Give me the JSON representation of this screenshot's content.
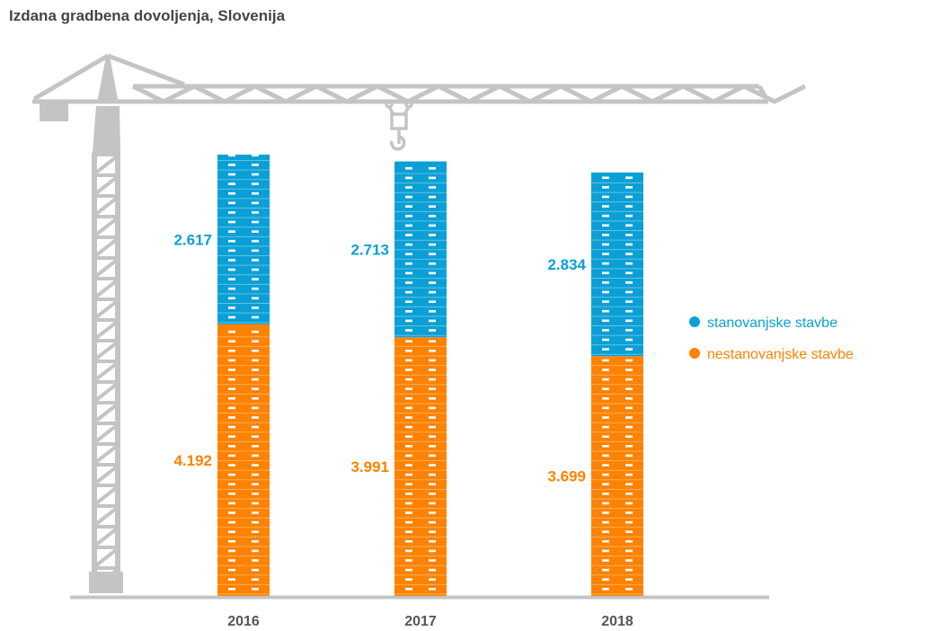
{
  "chart_data": {
    "type": "bar",
    "stacked": true,
    "title": "Izdana gradbena dovoljenja, Slovenija",
    "xlabel": "",
    "ylabel": "",
    "categories": [
      "2016",
      "2017",
      "2018"
    ],
    "series": [
      {
        "name": "nestanovanjske stavbe",
        "color": "#ff8200",
        "values": [
          4192,
          3991,
          3699
        ],
        "labels": [
          "4.192",
          "3.991",
          "3.699"
        ]
      },
      {
        "name": "stanovanjske stavbe",
        "color": "#0aa0d6",
        "values": [
          2617,
          2713,
          2834
        ],
        "labels": [
          "2.617",
          "2.713",
          "2.834"
        ]
      }
    ],
    "legend": {
      "position": "right",
      "entries": [
        "stanovanjske stavbe",
        "nestanovanjske stavbe"
      ]
    },
    "grid": false,
    "decoration": "construction-crane"
  }
}
